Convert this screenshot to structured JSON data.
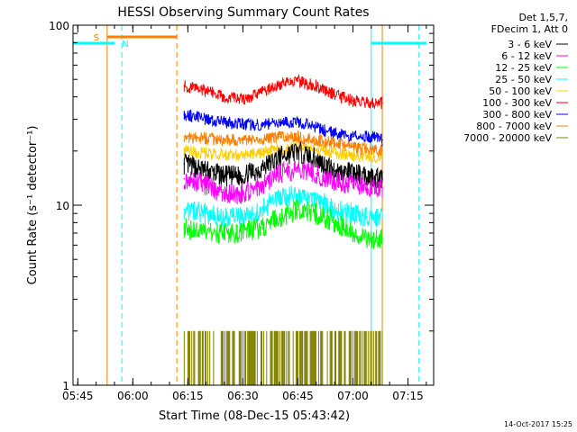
{
  "chart_data": {
    "type": "line",
    "title": "HESSI Observing Summary Count Rates",
    "xlabel": "Start Time (08-Dec-15 05:43:42)",
    "ylabel": "Count Rate (s⁻¹ detector⁻¹)",
    "yscale": "log",
    "ylim": [
      1,
      100
    ],
    "xlim": [
      "05:43:42",
      "07:22:00"
    ],
    "x_ticks": [
      "05:45",
      "06:00",
      "06:15",
      "06:30",
      "06:45",
      "07:00",
      "07:15"
    ],
    "y_ticks": [
      "1",
      "10",
      "100"
    ],
    "grid": false,
    "legend_header": [
      "Det 1,5,7,",
      "FDecim 1, Att 0"
    ],
    "legend_position": "top-right, outside plot",
    "footer_timestamp": "14-Oct-2017 15:25",
    "series": [
      {
        "name": "3 - 6 keV",
        "color": "#000000",
        "x": [
          "06:14",
          "06:20",
          "06:25",
          "06:30",
          "06:35",
          "06:40",
          "06:45",
          "06:50",
          "06:55",
          "07:00",
          "07:05",
          "07:08"
        ],
        "values": [
          17,
          15.5,
          14.5,
          14.5,
          16,
          18.5,
          20,
          18,
          15.5,
          15,
          14.5,
          14
        ]
      },
      {
        "name": "6 - 12 keV",
        "color": "#ff00ff",
        "x": [
          "06:14",
          "06:20",
          "06:25",
          "06:30",
          "06:35",
          "06:40",
          "06:45",
          "06:50",
          "06:55",
          "07:00",
          "07:05",
          "07:08"
        ],
        "values": [
          14,
          13,
          11.5,
          11.5,
          13,
          15,
          16,
          15,
          13.5,
          13,
          12.5,
          12.5
        ]
      },
      {
        "name": "12 - 25 keV",
        "color": "#00ff00",
        "x": [
          "06:14",
          "06:20",
          "06:25",
          "06:30",
          "06:35",
          "06:40",
          "06:45",
          "06:50",
          "06:55",
          "07:00",
          "07:05",
          "07:08"
        ],
        "values": [
          7.5,
          7,
          7,
          7,
          7.5,
          8.5,
          9.5,
          9,
          8,
          7,
          6.5,
          6.5
        ]
      },
      {
        "name": "25 - 50 keV",
        "color": "#00ffff",
        "x": [
          "06:14",
          "06:20",
          "06:25",
          "06:30",
          "06:35",
          "06:40",
          "06:45",
          "06:50",
          "06:55",
          "07:00",
          "07:05",
          "07:08"
        ],
        "values": [
          9.5,
          9,
          8.5,
          8.5,
          9.5,
          11,
          11.5,
          11,
          9.5,
          9,
          8.5,
          8.5
        ]
      },
      {
        "name": "50 - 100 keV",
        "color": "#ffcc00",
        "x": [
          "06:14",
          "06:20",
          "06:25",
          "06:30",
          "06:35",
          "06:40",
          "06:45",
          "06:50",
          "06:55",
          "07:00",
          "07:05",
          "07:08"
        ],
        "values": [
          20,
          19.5,
          19,
          19,
          19.5,
          20.5,
          21,
          20.5,
          19.5,
          19,
          18.5,
          18.5
        ]
      },
      {
        "name": "100 - 300 keV",
        "color": "#ff0000",
        "x": [
          "06:14",
          "06:20",
          "06:25",
          "06:30",
          "06:35",
          "06:40",
          "06:45",
          "06:50",
          "06:55",
          "07:00",
          "07:05",
          "07:08"
        ],
        "values": [
          46,
          43,
          40,
          39,
          42,
          47,
          49,
          46,
          41,
          38,
          37,
          37
        ]
      },
      {
        "name": "300 - 800 keV",
        "color": "#0000ff",
        "x": [
          "06:14",
          "06:20",
          "06:25",
          "06:30",
          "06:35",
          "06:40",
          "06:45",
          "06:50",
          "06:55",
          "07:00",
          "07:05",
          "07:08"
        ],
        "values": [
          32,
          30,
          29,
          28,
          28,
          29,
          29,
          27,
          25,
          24,
          24,
          23
        ]
      },
      {
        "name": "800 - 7000 keV",
        "color": "#ff8000",
        "x": [
          "06:14",
          "06:20",
          "06:25",
          "06:30",
          "06:35",
          "06:40",
          "06:45",
          "06:50",
          "06:55",
          "07:00",
          "07:05",
          "07:08"
        ],
        "values": [
          24,
          23.5,
          23,
          23,
          23,
          24,
          24,
          23,
          22,
          21,
          20.5,
          20
        ]
      },
      {
        "name": "7000 - 20000 keV",
        "color": "#808000",
        "x": [
          "06:14",
          "06:20",
          "06:25",
          "06:30",
          "06:35",
          "06:40",
          "06:45",
          "06:50",
          "06:55",
          "07:00",
          "07:05",
          "07:08"
        ],
        "values": [
          1.6,
          1.4,
          1.2,
          1.3,
          1.3,
          1.6,
          1.8,
          1.6,
          1.2,
          1,
          1,
          1
        ]
      }
    ],
    "annotations": {
      "saa_label": "S",
      "night_label": "N",
      "saa_interval": [
        "05:53",
        "06:12"
      ],
      "night_intervals": [
        [
          "05:43:42",
          "05:55"
        ],
        [
          "07:05",
          "07:20"
        ]
      ],
      "orange_solid_lines": [
        "05:53",
        "07:08"
      ],
      "orange_dashed_lines": [
        "06:12"
      ],
      "cyan_solid_lines": [
        "05:43:42",
        "07:05"
      ],
      "cyan_dashed_lines": [
        "05:57",
        "07:18"
      ]
    }
  }
}
